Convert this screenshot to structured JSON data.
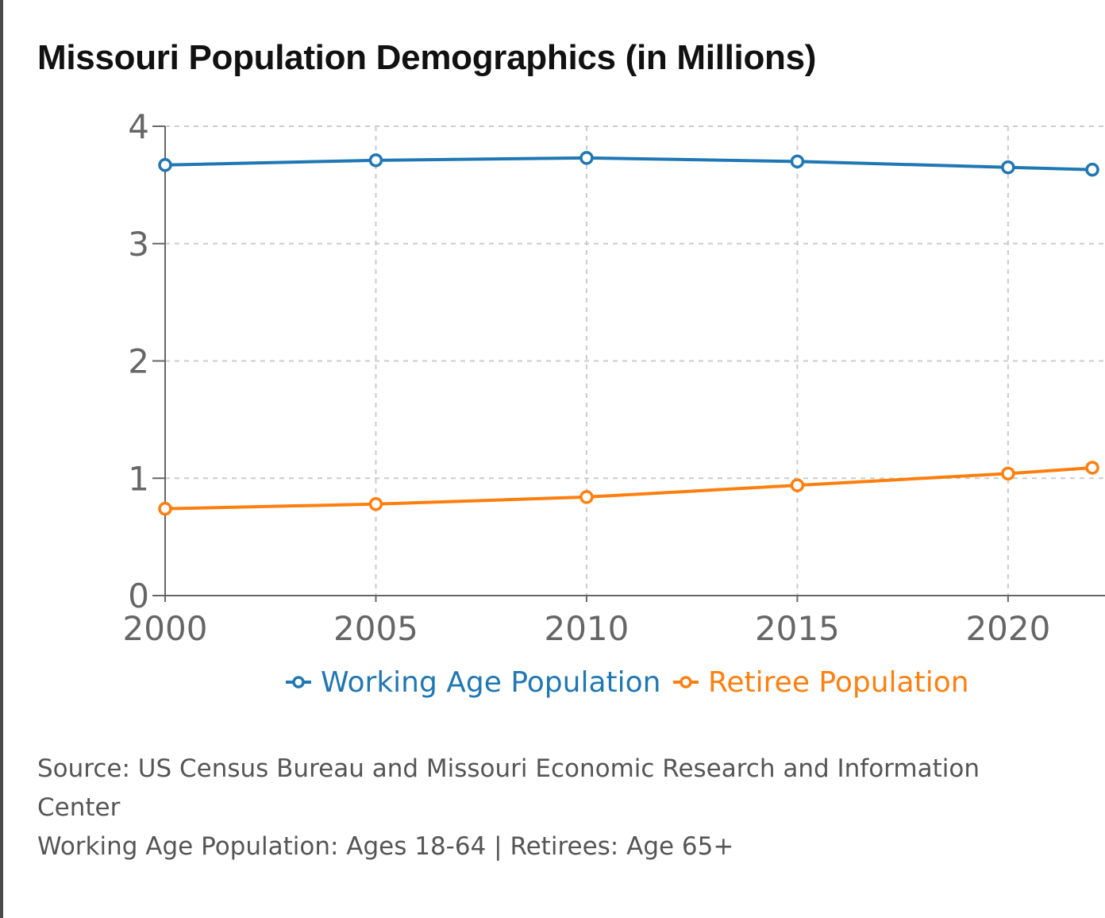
{
  "chart_data": {
    "type": "line",
    "title": "Missouri Population Demographics (in Millions)",
    "x": [
      2000,
      2005,
      2010,
      2015,
      2020,
      2022
    ],
    "x_ticks": [
      "2000",
      "2005",
      "2010",
      "2015",
      "2020"
    ],
    "y_ticks": [
      "0",
      "1",
      "2",
      "3",
      "4"
    ],
    "xlim": [
      2000,
      2022.3
    ],
    "ylim": [
      0,
      4
    ],
    "grid": true,
    "legend": "bottom-center",
    "series": [
      {
        "name": "Working Age Population",
        "color": "#1f77b4",
        "values": [
          3.67,
          3.71,
          3.73,
          3.7,
          3.65,
          3.63
        ]
      },
      {
        "name": "Retiree Population",
        "color": "#ff7f0e",
        "values": [
          0.74,
          0.78,
          0.84,
          0.94,
          1.04,
          1.09
        ]
      }
    ],
    "xlabel": "",
    "ylabel": ""
  },
  "notes": {
    "source": "Source: US Census Bureau and Missouri Economic Research and Information Center",
    "definitions": "Working Age Population: Ages 18-64 | Retirees: Age 65+"
  }
}
